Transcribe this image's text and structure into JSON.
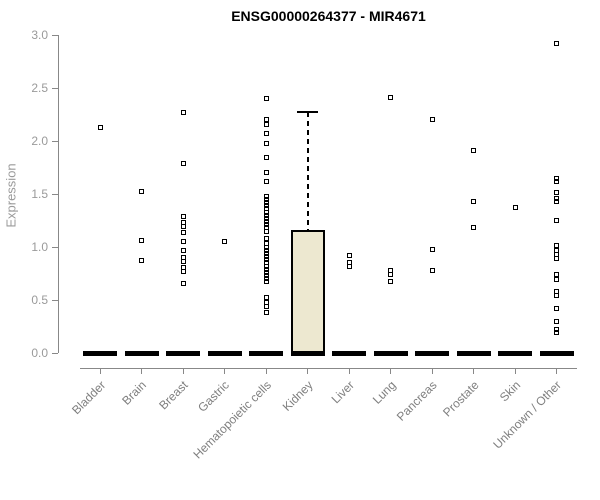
{
  "title": "ENSG00000264377 - MIR4671",
  "chart_data": {
    "type": "boxplot",
    "title": "ENSG00000264377 - MIR4671",
    "xlabel": "",
    "ylabel": "Expression",
    "ylim": [
      0.0,
      3.0
    ],
    "ytick_labels": [
      "0.0",
      "0.5",
      "1.0",
      "1.5",
      "2.0",
      "2.5",
      "3.0"
    ],
    "grid": false,
    "legend": "none",
    "point_marker": "open-square",
    "categories": [
      "Bladder",
      "Brain",
      "Breast",
      "Gastric",
      "Hematopoietic cells",
      "Kidney",
      "Liver",
      "Lung",
      "Pancreas",
      "Prostate",
      "Skin",
      "Unknown / Other"
    ],
    "series": [
      {
        "category": "Bladder",
        "median": 0,
        "q1": 0,
        "q3": 0,
        "points": [
          2.13
        ]
      },
      {
        "category": "Brain",
        "median": 0,
        "q1": 0,
        "q3": 0,
        "points": [
          1.52,
          1.06,
          0.87
        ]
      },
      {
        "category": "Breast",
        "median": 0,
        "q1": 0,
        "q3": 0,
        "points": [
          2.27,
          1.79,
          1.29,
          1.23,
          1.19,
          1.14,
          1.05,
          0.97,
          0.9,
          0.86,
          0.81,
          0.77,
          0.66
        ]
      },
      {
        "category": "Gastric",
        "median": 0,
        "q1": 0,
        "q3": 0,
        "points": [
          1.05
        ]
      },
      {
        "category": "Hematopoietic cells",
        "median": 0,
        "q1": 0,
        "q3": 0,
        "points": [
          2.4,
          2.2,
          2.16,
          2.07,
          1.98,
          1.84,
          1.7,
          1.62,
          1.48,
          1.45,
          1.42,
          1.39,
          1.36,
          1.33,
          1.3,
          1.27,
          1.24,
          1.21,
          1.18,
          1.15,
          1.08,
          1.03,
          1.0,
          0.97,
          0.94,
          0.91,
          0.88,
          0.85,
          0.82,
          0.79,
          0.76,
          0.73,
          0.7,
          0.67,
          0.52,
          0.48,
          0.44,
          0.38
        ]
      },
      {
        "category": "Kidney",
        "median": 0,
        "q1": 0,
        "q3": 1.16,
        "whisker_high": 2.27,
        "whisker_low": 0,
        "points": []
      },
      {
        "category": "Liver",
        "median": 0,
        "q1": 0,
        "q3": 0,
        "points": [
          0.92,
          0.85,
          0.82
        ]
      },
      {
        "category": "Lung",
        "median": 0,
        "q1": 0,
        "q3": 0,
        "points": [
          2.41,
          0.78,
          0.74,
          0.67
        ]
      },
      {
        "category": "Pancreas",
        "median": 0,
        "q1": 0,
        "q3": 0,
        "points": [
          2.2,
          0.98,
          0.78
        ]
      },
      {
        "category": "Prostate",
        "median": 0,
        "q1": 0,
        "q3": 0,
        "points": [
          1.91,
          1.43,
          1.18
        ]
      },
      {
        "category": "Skin",
        "median": 0,
        "q1": 0,
        "q3": 0,
        "points": [
          1.37
        ]
      },
      {
        "category": "Unknown / Other",
        "median": 0,
        "q1": 0,
        "q3": 0,
        "points": [
          2.92,
          1.65,
          1.62,
          1.51,
          1.46,
          1.43,
          1.25,
          1.01,
          0.97,
          0.93,
          0.89,
          0.74,
          0.69,
          0.58,
          0.54,
          0.42,
          0.3,
          0.22,
          0.19
        ]
      }
    ],
    "colors": {
      "box_fill": "#EDE8D0",
      "box_border": "#000000",
      "median": "#000000",
      "point": "#000000",
      "axis": "#888888",
      "ytick_label": "#9a9a9a",
      "category_label": "#7f7f7f",
      "title": "#000000",
      "background": "#ffffff"
    }
  }
}
